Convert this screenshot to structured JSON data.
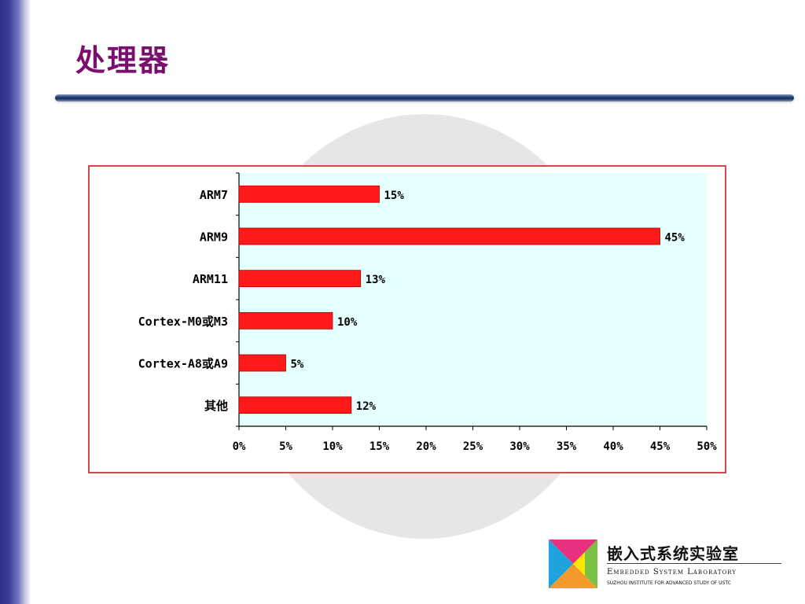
{
  "slide": {
    "title": "处理器"
  },
  "logo": {
    "name_cn": "嵌入式系统实验室",
    "name_en": "Embedded System Laboratory",
    "subtitle": "Suzhou Institute for Advanced Study of USTC"
  },
  "colors": {
    "title": "#7a0f6e",
    "bar": "#ff1a1a",
    "plot_background": "#e6ffff",
    "frame": "#d24a4a"
  },
  "chart_data": {
    "type": "bar",
    "orientation": "horizontal",
    "categories": [
      "ARM7",
      "ARM9",
      "ARM11",
      "Cortex-M0或M3",
      "Cortex-A8或A9",
      "其他"
    ],
    "values": [
      15,
      45,
      13,
      10,
      5,
      12
    ],
    "data_labels": [
      "15%",
      "45%",
      "13%",
      "10%",
      "5%",
      "12%"
    ],
    "xticks": [
      "0%",
      "5%",
      "10%",
      "15%",
      "20%",
      "25%",
      "30%",
      "35%",
      "40%",
      "45%",
      "50%"
    ],
    "xlim": [
      0,
      50
    ],
    "title": "",
    "xlabel": "",
    "ylabel": "",
    "grid": false,
    "legend": "none"
  }
}
